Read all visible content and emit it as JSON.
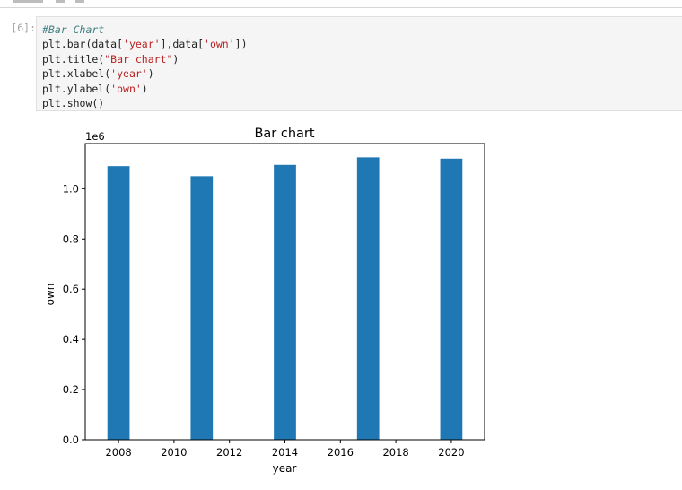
{
  "cell": {
    "prompt": "[6]:",
    "code": [
      [
        {
          "t": "#Bar Chart",
          "c": "comment"
        }
      ],
      [
        {
          "t": "plt.bar(data[",
          "c": ""
        },
        {
          "t": "'year'",
          "c": "string"
        },
        {
          "t": "],data[",
          "c": ""
        },
        {
          "t": "'own'",
          "c": "string"
        },
        {
          "t": "])",
          "c": ""
        }
      ],
      [
        {
          "t": "plt.title(",
          "c": ""
        },
        {
          "t": "\"Bar chart\"",
          "c": "string"
        },
        {
          "t": ")",
          "c": ""
        }
      ],
      [
        {
          "t": "plt.xlabel(",
          "c": ""
        },
        {
          "t": "'year'",
          "c": "string"
        },
        {
          "t": ")",
          "c": ""
        }
      ],
      [
        {
          "t": "plt.ylabel(",
          "c": ""
        },
        {
          "t": "'own'",
          "c": "string"
        },
        {
          "t": ")",
          "c": ""
        }
      ],
      [
        {
          "t": "plt.show()",
          "c": ""
        }
      ]
    ]
  },
  "chart_data": {
    "type": "bar",
    "title": "Bar chart",
    "xlabel": "year",
    "ylabel": "own",
    "y_offset_label": "1e6",
    "x": [
      2008,
      2011,
      2014,
      2017,
      2020
    ],
    "values": [
      1090000,
      1050000,
      1095000,
      1125000,
      1120000
    ],
    "xlim": [
      2006.8,
      2021.2
    ],
    "ylim": [
      0,
      1180000
    ],
    "xticks": [
      2008,
      2010,
      2012,
      2014,
      2016,
      2018,
      2020
    ],
    "yticks": [
      0,
      200000,
      400000,
      600000,
      800000,
      1000000
    ],
    "ytick_labels": [
      "0.0",
      "0.2",
      "0.4",
      "0.6",
      "0.8",
      "1.0"
    ],
    "bar_color": "#1f77b4",
    "grid": false
  }
}
